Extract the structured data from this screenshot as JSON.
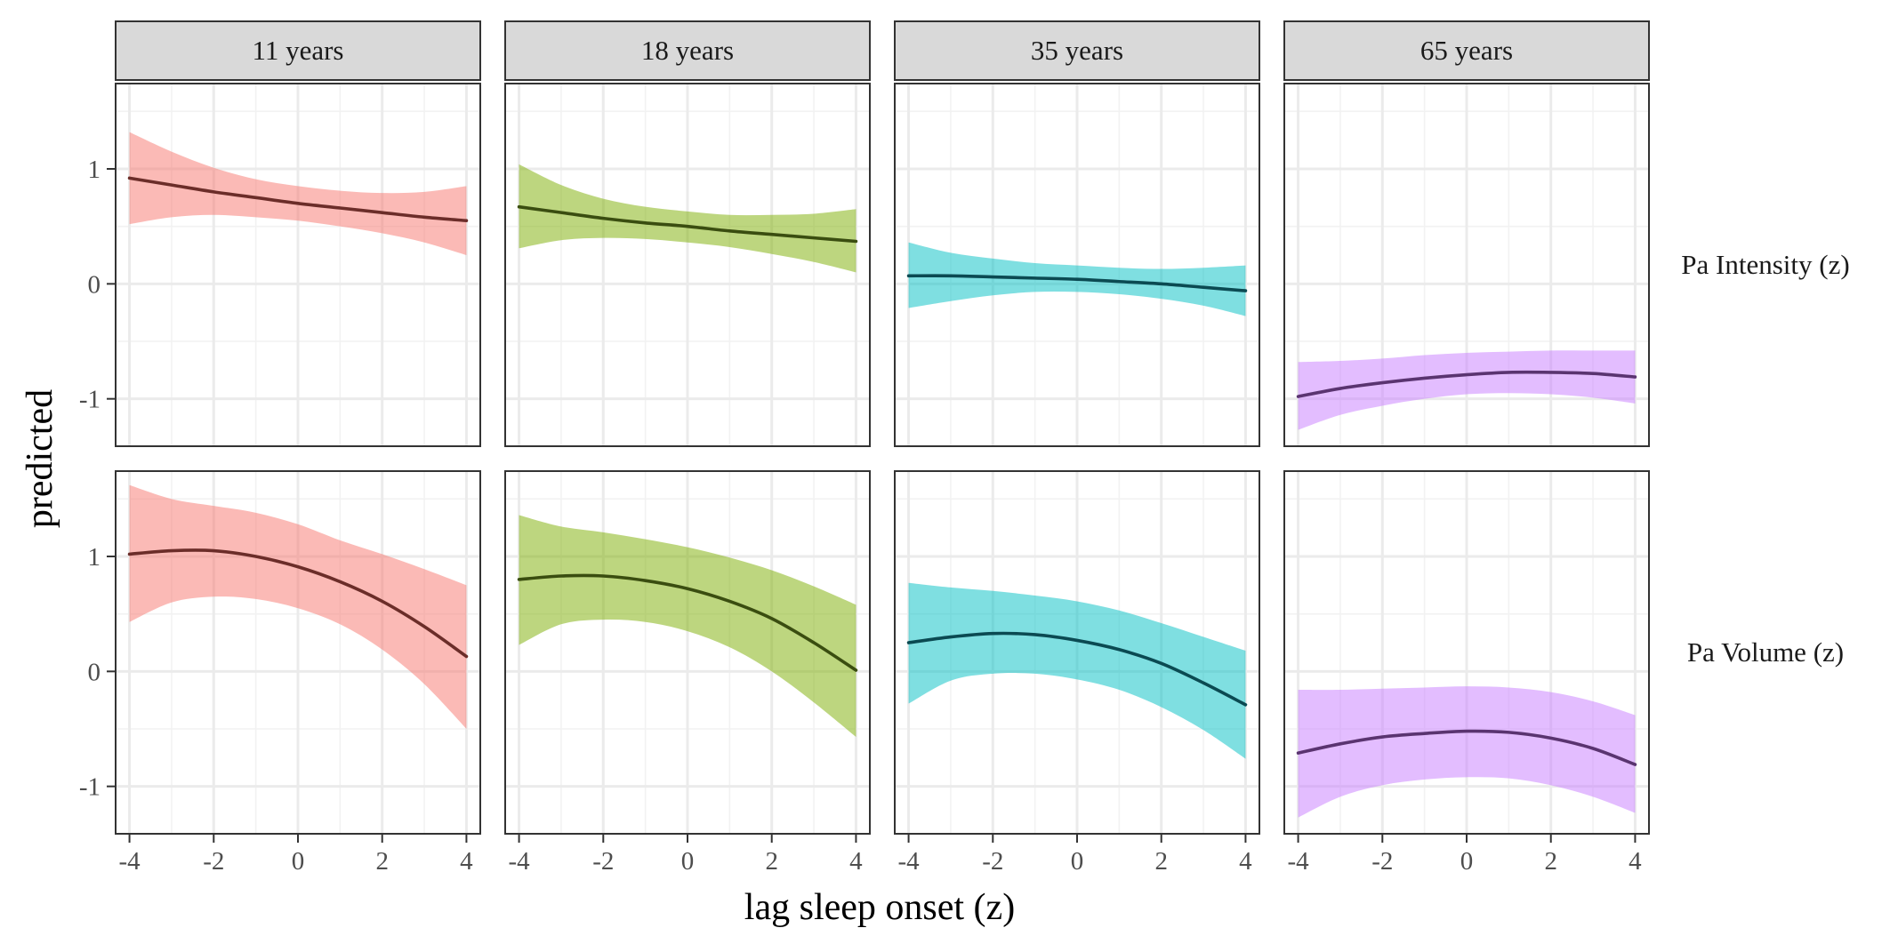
{
  "chart_data": {
    "type": "line",
    "xlabel": "lag sleep onset (z)",
    "ylabel": "predicted",
    "xlim": [
      -4.35,
      4.35
    ],
    "ylim": [
      -1.42,
      1.75
    ],
    "xticks": [
      -4,
      -2,
      0,
      2,
      4
    ],
    "xtick_labels": [
      "-4",
      "-2",
      "0",
      "2",
      "4"
    ],
    "yticks": [
      -1,
      0,
      1
    ],
    "ytick_labels": [
      "-1",
      "0",
      "1"
    ],
    "grid": true,
    "legend": "none",
    "facet_columns": [
      "11 years",
      "18 years",
      "35 years",
      "65 years"
    ],
    "facet_rows": [
      "Pa Intensity (z)",
      "Pa Volume (z)"
    ],
    "colors": {
      "11 years": {
        "fill": "#F8766D",
        "line": "#6B2D29"
      },
      "18 years": {
        "fill": "#7CAE00",
        "line": "#3A4D10"
      },
      "35 years": {
        "fill": "#00BFC4",
        "line": "#0B4A52"
      },
      "65 years": {
        "fill": "#C77CFF",
        "line": "#5A3470"
      }
    },
    "x": [
      -4,
      -3,
      -2,
      -1,
      0,
      1,
      2,
      3,
      4
    ],
    "panels": [
      {
        "row": "Pa Intensity (z)",
        "column": "11 years",
        "fit": [
          0.92,
          0.86,
          0.8,
          0.75,
          0.7,
          0.66,
          0.62,
          0.58,
          0.55
        ],
        "lower": [
          0.52,
          0.58,
          0.6,
          0.58,
          0.55,
          0.5,
          0.44,
          0.36,
          0.25
        ],
        "upper": [
          1.32,
          1.15,
          1.01,
          0.91,
          0.85,
          0.81,
          0.79,
          0.8,
          0.85
        ]
      },
      {
        "row": "Pa Intensity (z)",
        "column": "18 years",
        "fit": [
          0.67,
          0.62,
          0.57,
          0.53,
          0.5,
          0.46,
          0.43,
          0.4,
          0.37
        ],
        "lower": [
          0.31,
          0.38,
          0.4,
          0.39,
          0.36,
          0.32,
          0.26,
          0.19,
          0.1
        ],
        "upper": [
          1.04,
          0.86,
          0.74,
          0.67,
          0.63,
          0.6,
          0.6,
          0.61,
          0.65
        ]
      },
      {
        "row": "Pa Intensity (z)",
        "column": "35 years",
        "fit": [
          0.07,
          0.07,
          0.06,
          0.05,
          0.04,
          0.02,
          0.0,
          -0.03,
          -0.06
        ],
        "lower": [
          -0.21,
          -0.15,
          -0.1,
          -0.07,
          -0.07,
          -0.09,
          -0.13,
          -0.19,
          -0.28
        ],
        "upper": [
          0.36,
          0.27,
          0.22,
          0.18,
          0.16,
          0.14,
          0.13,
          0.14,
          0.16
        ]
      },
      {
        "row": "Pa Intensity (z)",
        "column": "65 years",
        "fit": [
          -0.98,
          -0.91,
          -0.86,
          -0.82,
          -0.79,
          -0.77,
          -0.77,
          -0.78,
          -0.81
        ],
        "lower": [
          -1.27,
          -1.14,
          -1.06,
          -1.0,
          -0.96,
          -0.95,
          -0.96,
          -0.99,
          -1.04
        ],
        "upper": [
          -0.68,
          -0.67,
          -0.65,
          -0.62,
          -0.6,
          -0.59,
          -0.58,
          -0.58,
          -0.58
        ]
      },
      {
        "row": "Pa Volume (z)",
        "column": "11 years",
        "fit": [
          1.02,
          1.05,
          1.05,
          1.0,
          0.91,
          0.78,
          0.61,
          0.39,
          0.13
        ],
        "lower": [
          0.43,
          0.6,
          0.65,
          0.63,
          0.55,
          0.41,
          0.19,
          -0.11,
          -0.5
        ],
        "upper": [
          1.62,
          1.5,
          1.44,
          1.38,
          1.28,
          1.14,
          1.02,
          0.89,
          0.75
        ]
      },
      {
        "row": "Pa Volume (z)",
        "column": "18 years",
        "fit": [
          0.8,
          0.83,
          0.83,
          0.79,
          0.72,
          0.61,
          0.46,
          0.25,
          0.01
        ],
        "lower": [
          0.23,
          0.41,
          0.45,
          0.43,
          0.35,
          0.21,
          0.0,
          -0.27,
          -0.57
        ],
        "upper": [
          1.36,
          1.26,
          1.21,
          1.15,
          1.08,
          0.99,
          0.88,
          0.74,
          0.58
        ]
      },
      {
        "row": "Pa Volume (z)",
        "column": "35 years",
        "fit": [
          0.25,
          0.3,
          0.33,
          0.32,
          0.27,
          0.19,
          0.07,
          -0.1,
          -0.29
        ],
        "lower": [
          -0.28,
          -0.08,
          -0.02,
          -0.02,
          -0.07,
          -0.16,
          -0.31,
          -0.51,
          -0.76
        ],
        "upper": [
          0.77,
          0.73,
          0.7,
          0.66,
          0.61,
          0.53,
          0.42,
          0.3,
          0.18
        ]
      },
      {
        "row": "Pa Volume (z)",
        "column": "65 years",
        "fit": [
          -0.71,
          -0.63,
          -0.57,
          -0.54,
          -0.52,
          -0.53,
          -0.58,
          -0.67,
          -0.81
        ],
        "lower": [
          -1.27,
          -1.09,
          -0.99,
          -0.94,
          -0.92,
          -0.93,
          -0.99,
          -1.09,
          -1.23
        ],
        "upper": [
          -0.16,
          -0.16,
          -0.15,
          -0.14,
          -0.13,
          -0.14,
          -0.18,
          -0.26,
          -0.38
        ]
      }
    ]
  }
}
